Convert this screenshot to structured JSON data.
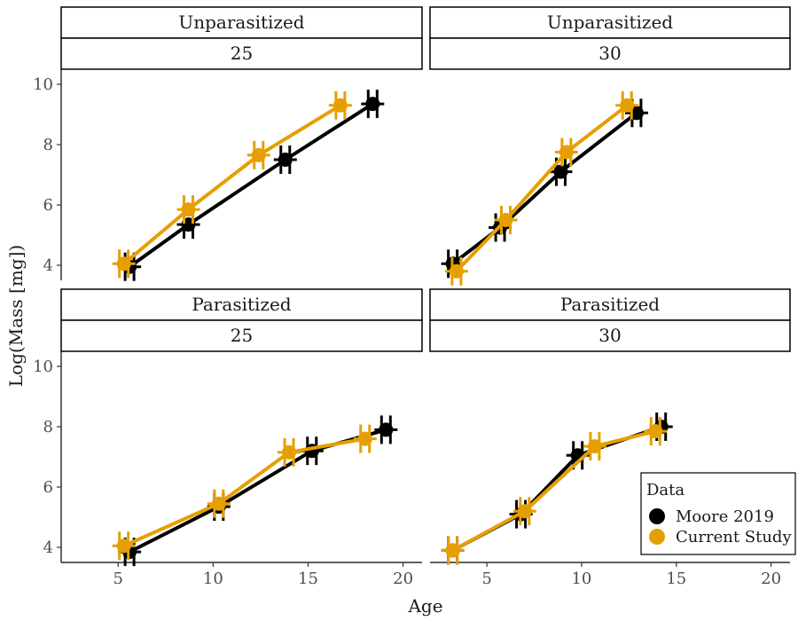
{
  "chart_data": {
    "type": "line",
    "xlabel": "Age",
    "ylabel": "Log(Mass [mg])",
    "xlim": [
      2,
      21
    ],
    "ylim": [
      3.5,
      10.5
    ],
    "x_ticks": [
      "5",
      "10",
      "15",
      "20"
    ],
    "y_ticks": [
      "4",
      "6",
      "8",
      "10"
    ],
    "legend": {
      "title": "Data",
      "position": "bottom-right",
      "entries": [
        "Moore 2019",
        "Current Study"
      ]
    },
    "colors": {
      "Moore 2019": "#000000",
      "Current Study": "#E69F00"
    },
    "panels": [
      {
        "strip_top": "Unparasitized",
        "strip_bottom": "25",
        "series": [
          {
            "name": "Moore 2019",
            "x": [
              5.6,
              8.7,
              13.8,
              18.4
            ],
            "y": [
              3.95,
              5.35,
              7.5,
              9.35
            ]
          },
          {
            "name": "Current Study",
            "x": [
              5.3,
              8.7,
              12.4,
              16.7
            ],
            "y": [
              4.05,
              5.85,
              7.65,
              9.3
            ]
          }
        ]
      },
      {
        "strip_top": "Unparasitized",
        "strip_bottom": "30",
        "series": [
          {
            "name": "Moore 2019",
            "x": [
              3.2,
              5.7,
              8.9,
              12.9
            ],
            "y": [
              4.05,
              5.25,
              7.1,
              9.05
            ]
          },
          {
            "name": "Current Study",
            "x": [
              3.4,
              6.0,
              9.2,
              12.4
            ],
            "y": [
              3.8,
              5.5,
              7.75,
              9.3
            ]
          }
        ]
      },
      {
        "strip_top": "Parasitized",
        "strip_bottom": "25",
        "series": [
          {
            "name": "Moore 2019",
            "x": [
              5.6,
              10.3,
              15.2,
              19.1
            ],
            "y": [
              3.85,
              5.35,
              7.2,
              7.9
            ]
          },
          {
            "name": "Current Study",
            "x": [
              5.3,
              10.3,
              14.0,
              18.0
            ],
            "y": [
              4.05,
              5.45,
              7.15,
              7.6
            ]
          }
        ]
      },
      {
        "strip_top": "Parasitized",
        "strip_bottom": "30",
        "series": [
          {
            "name": "Moore 2019",
            "x": [
              3.2,
              6.8,
              9.8,
              14.2
            ],
            "y": [
              3.9,
              5.1,
              7.05,
              8.0
            ]
          },
          {
            "name": "Current Study",
            "x": [
              3.2,
              7.0,
              10.7,
              13.9
            ],
            "y": [
              3.9,
              5.2,
              7.35,
              7.85
            ]
          }
        ]
      }
    ]
  }
}
